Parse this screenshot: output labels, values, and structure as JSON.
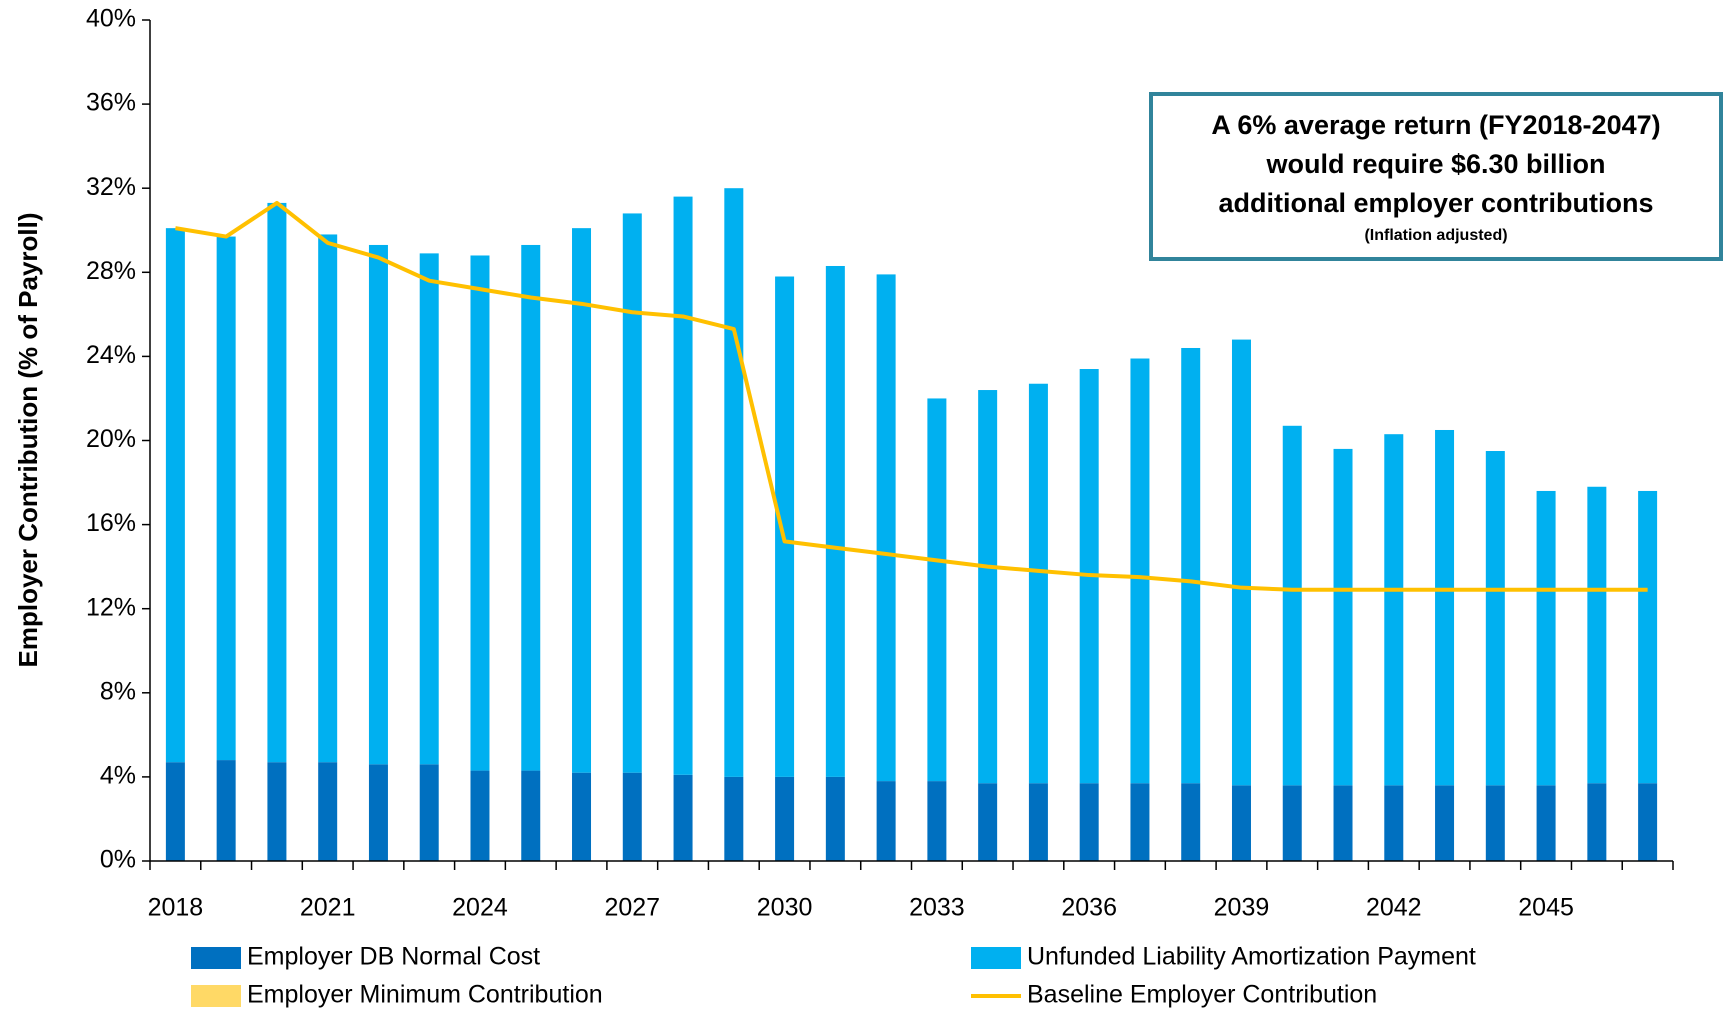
{
  "chart_data": {
    "type": "bar",
    "stacked": true,
    "y_label": "Employer Contribution (% of Payroll)",
    "annotation": [
      "A 6% average return (FY2018-2047)",
      "would require $6.30 billion",
      "additional employer contributions",
      "(Inflation adjusted)"
    ],
    "categories": [
      "2018",
      null,
      null,
      "2021",
      null,
      null,
      "2024",
      null,
      null,
      "2027",
      null,
      null,
      "2030",
      null,
      null,
      "2033",
      null,
      null,
      "2036",
      null,
      null,
      "2039",
      null,
      null,
      "2042",
      null,
      null,
      "2045",
      null,
      null
    ],
    "series": [
      {
        "name": "Employer DB Normal Cost",
        "color": "#0070c0",
        "type": "bar",
        "values": [
          4.7,
          4.8,
          4.7,
          4.7,
          4.6,
          4.6,
          4.3,
          4.3,
          4.2,
          4.2,
          4.1,
          4.0,
          4.0,
          4.0,
          3.8,
          3.8,
          3.7,
          3.7,
          3.7,
          3.7,
          3.7,
          3.6,
          3.6,
          3.6,
          3.6,
          3.6,
          3.6,
          3.6,
          3.7,
          3.7
        ]
      },
      {
        "name": "Unfunded Liability Amortization Payment",
        "color": "#00b0f0",
        "type": "bar",
        "values": [
          25.4,
          24.9,
          26.6,
          25.1,
          24.7,
          24.3,
          24.5,
          25.0,
          25.9,
          26.6,
          27.5,
          28.0,
          23.8,
          24.3,
          24.1,
          18.2,
          18.7,
          19.0,
          19.7,
          20.2,
          20.7,
          21.2,
          17.1,
          16.0,
          16.7,
          16.9,
          15.9,
          14.0,
          14.1,
          13.9
        ]
      },
      {
        "name": "Employer Minimum Contribution",
        "color": "#ffd966",
        "type": "bar",
        "values": [
          0,
          0,
          0,
          0,
          0,
          0,
          0,
          0,
          0,
          0,
          0,
          0,
          0,
          0,
          0,
          0,
          0,
          0,
          0,
          0,
          0,
          0,
          0,
          0,
          0,
          0,
          0,
          0,
          0,
          0
        ]
      },
      {
        "name": "Baseline Employer Contribution",
        "color": "#ffc000",
        "type": "line",
        "values": [
          30.1,
          29.7,
          31.3,
          29.4,
          28.7,
          27.6,
          27.2,
          26.8,
          26.5,
          26.1,
          25.9,
          25.3,
          15.2,
          14.9,
          14.6,
          14.3,
          14.0,
          13.8,
          13.6,
          13.5,
          13.3,
          13.0,
          12.9,
          12.9,
          12.9,
          12.9,
          12.9,
          12.9,
          12.9,
          12.9
        ]
      }
    ],
    "ylim": [
      0,
      40
    ],
    "yticks": [
      {
        "value": 0,
        "label": "0%"
      },
      {
        "value": 4,
        "label": "4%"
      },
      {
        "value": 8,
        "label": "8%"
      },
      {
        "value": 12,
        "label": "12%"
      },
      {
        "value": 16,
        "label": "16%"
      },
      {
        "value": 20,
        "label": "20%"
      },
      {
        "value": 24,
        "label": "24%"
      },
      {
        "value": 28,
        "label": "28%"
      },
      {
        "value": 32,
        "label": "32%"
      },
      {
        "value": 36,
        "label": "36%"
      },
      {
        "value": 40,
        "label": "40%"
      }
    ],
    "grid": false,
    "legend": "bottom"
  }
}
